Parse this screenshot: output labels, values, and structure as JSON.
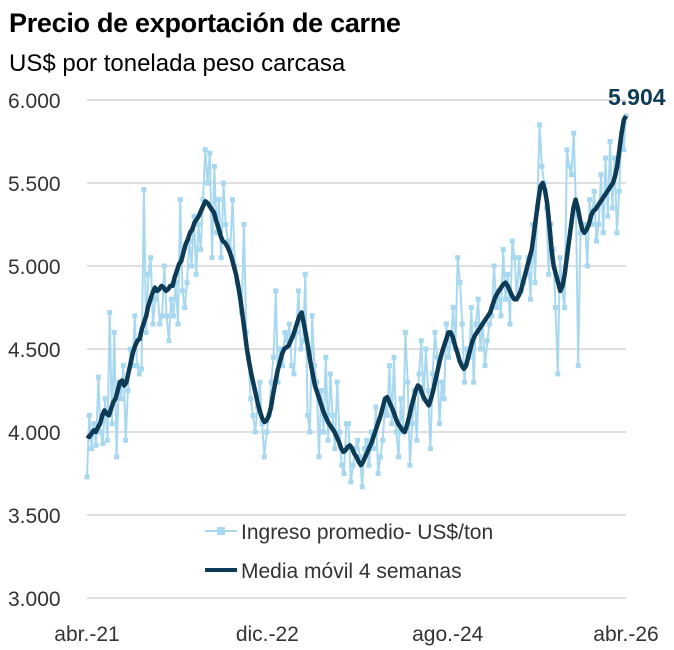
{
  "chart_data": {
    "type": "line",
    "title": "Precio de exportación de carne",
    "subtitle": "US$ por tonelada peso carcasa",
    "xlabel": "",
    "ylabel": "",
    "ylim": [
      3000,
      6000
    ],
    "yticks": [
      3000,
      3500,
      4000,
      4500,
      5000,
      5500,
      6000
    ],
    "ytick_labels": [
      "3.000",
      "3.500",
      "4.000",
      "4.500",
      "5.000",
      "5.500",
      "6.000"
    ],
    "xticks": [
      "abr.-21",
      "dic.-22",
      "ago.-24",
      "abr.-26"
    ],
    "x_range_weeks": [
      0,
      260
    ],
    "xtick_positions_weeks": [
      0,
      87,
      174,
      260
    ],
    "grid": true,
    "legend_position": "bottom-center",
    "end_label": "5.904",
    "series": [
      {
        "name": "Ingreso promedio- US$/ton",
        "color": "#a8d8f0",
        "marker": "square",
        "values": [
          3730,
          4100,
          3900,
          4050,
          3920,
          4330,
          4000,
          3930,
          4200,
          3950,
          4720,
          4050,
          4600,
          3850,
          4300,
          4200,
          4400,
          3950,
          4250,
          4500,
          4400,
          4700,
          4400,
          4350,
          4380,
          5460,
          4600,
          4950,
          5050,
          4650,
          4800,
          4850,
          4650,
          4700,
          5000,
          4700,
          4550,
          4800,
          4700,
          4900,
          4650,
          5400,
          4850,
          4750,
          4900,
          5150,
          5000,
          5300,
          4950,
          5250,
          5100,
          5400,
          5700,
          5500,
          5680,
          5050,
          5600,
          5200,
          5400,
          5050,
          5500,
          5250,
          5150,
          5100,
          5400,
          5000,
          4900,
          4850,
          4720,
          5250,
          4600,
          4450,
          4200,
          4100,
          4000,
          4150,
          4300,
          4050,
          3850,
          4000,
          4100,
          4300,
          4450,
          4850,
          4300,
          4500,
          4400,
          4600,
          4550,
          4650,
          4400,
          4350,
          4600,
          4850,
          4500,
          4550,
          4950,
          4100,
          4000,
          4700,
          4400,
          4300,
          3850,
          4250,
          4000,
          4450,
          3950,
          4350,
          4100,
          3900,
          4300,
          4000,
          3800,
          3750,
          4050,
          4050,
          3700,
          3800,
          3900,
          3950,
          3850,
          3670,
          3900,
          3950,
          3800,
          4000,
          3900,
          4150,
          3750,
          3850,
          3950,
          4150,
          4100,
          4400,
          4050,
          4450,
          4000,
          3850,
          4200,
          4000,
          4600,
          4300,
          3800,
          4050,
          4250,
          3950,
          4350,
          4550,
          4200,
          4500,
          4250,
          3900,
          4350,
          4600,
          4450,
          4050,
          4300,
          4200,
          4650,
          4450,
          4550,
          4750,
          4500,
          5050,
          4900,
          4650,
          4300,
          4500,
          4450,
          4750,
          4300,
          4650,
          4800,
          4500,
          4650,
          4400,
          4550,
          4650,
          4700,
          5000,
          4750,
          4850,
          4700,
          5100,
          4800,
          4950,
          4650,
          5150,
          5050,
          4800,
          5050,
          4850,
          4900,
          4950,
          5050,
          4800,
          5250,
          4900,
          5350,
          5850,
          5600,
          5500,
          5350,
          4950,
          5250,
          5100,
          4750,
          4350,
          5050,
          4850,
          4750,
          5700,
          5600,
          5550,
          5800,
          5350,
          4400,
          5200,
          5250,
          5250,
          5000,
          5400,
          5250,
          5450,
          5150,
          5250,
          5550,
          5200,
          5650,
          5300,
          5750,
          5350,
          5650,
          5200,
          5450,
          5800,
          5700,
          5904
        ]
      },
      {
        "name": "Media móvil 4 semanas",
        "color": "#0d3a55",
        "marker": "none",
        "values": [
          3980,
          3970,
          3990,
          4010,
          4000,
          4030,
          4050,
          4100,
          4130,
          4110,
          4100,
          4140,
          4180,
          4200,
          4250,
          4300,
          4310,
          4280,
          4300,
          4360,
          4420,
          4480,
          4520,
          4550,
          4560,
          4620,
          4660,
          4700,
          4760,
          4800,
          4840,
          4870,
          4850,
          4860,
          4880,
          4870,
          4850,
          4860,
          4880,
          4880,
          4930,
          4970,
          5010,
          5030,
          5080,
          5130,
          5160,
          5200,
          5220,
          5260,
          5280,
          5300,
          5330,
          5360,
          5390,
          5380,
          5360,
          5340,
          5320,
          5270,
          5230,
          5180,
          5150,
          5140,
          5120,
          5090,
          5050,
          5000,
          4950,
          4880,
          4800,
          4700,
          4600,
          4500,
          4420,
          4350,
          4290,
          4230,
          4170,
          4120,
          4080,
          4060,
          4070,
          4100,
          4150,
          4230,
          4300,
          4370,
          4420,
          4470,
          4500,
          4510,
          4520,
          4550,
          4580,
          4620,
          4660,
          4700,
          4720,
          4650,
          4580,
          4500,
          4420,
          4350,
          4280,
          4240,
          4200,
          4160,
          4120,
          4090,
          4060,
          4040,
          4020,
          4000,
          3970,
          3940,
          3900,
          3880,
          3890,
          3910,
          3920,
          3900,
          3870,
          3850,
          3820,
          3800,
          3820,
          3850,
          3880,
          3910,
          3940,
          3980,
          4020,
          4060,
          4100,
          4150,
          4200,
          4210,
          4180,
          4150,
          4120,
          4080,
          4050,
          4030,
          4010,
          4000,
          4040,
          4090,
          4150,
          4200,
          4250,
          4280,
          4270,
          4230,
          4200,
          4180,
          4160,
          4200,
          4250,
          4310,
          4370,
          4430,
          4480,
          4520,
          4560,
          4600,
          4600,
          4570,
          4520,
          4480,
          4430,
          4400,
          4380,
          4400,
          4450,
          4500,
          4550,
          4580,
          4600,
          4620,
          4640,
          4660,
          4680,
          4700,
          4720,
          4760,
          4800,
          4830,
          4850,
          4870,
          4890,
          4900,
          4880,
          4850,
          4820,
          4800,
          4800,
          4820,
          4850,
          4900,
          4950,
          5000,
          5050,
          5100,
          5200,
          5300,
          5400,
          5480,
          5500,
          5460,
          5380,
          5250,
          5100,
          5000,
          4950,
          4900,
          4850,
          4880,
          4950,
          5050,
          5150,
          5250,
          5350,
          5400,
          5350,
          5280,
          5220,
          5200,
          5220,
          5250,
          5300,
          5330,
          5340,
          5360,
          5380,
          5400,
          5420,
          5440,
          5460,
          5480,
          5500,
          5540,
          5600,
          5700,
          5800,
          5880,
          5904
        ]
      }
    ]
  }
}
